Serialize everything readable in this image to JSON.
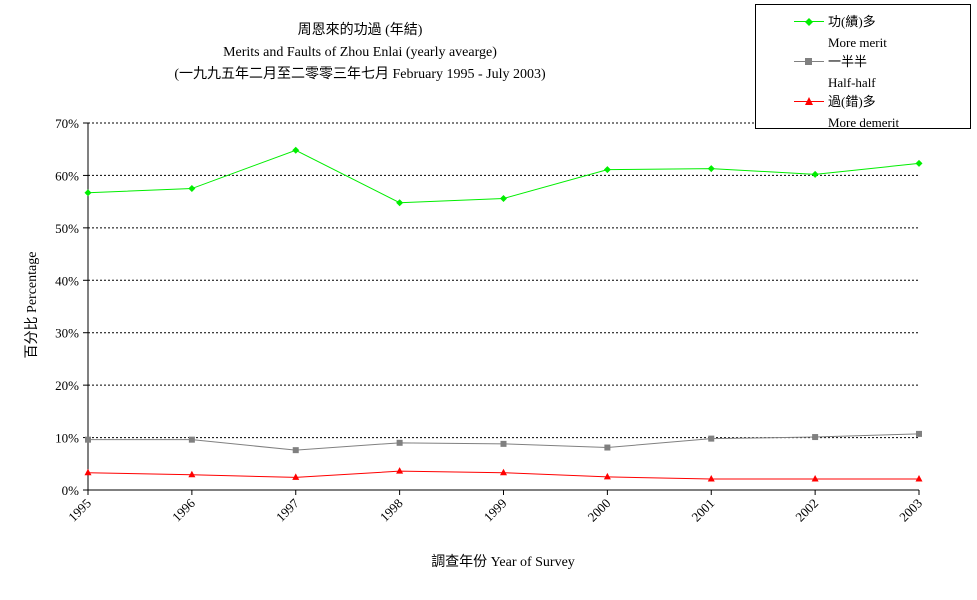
{
  "chart_data": {
    "type": "line",
    "title": "周恩來的功過 (年結)",
    "subtitle": "Merits and Faults of Zhou Enlai (yearly avearge)",
    "subtitle2": "(一九九五年二月至二零零三年七月 February 1995 - July 2003)",
    "xlabel": "調查年份 Year of Survey",
    "ylabel": "百分比 Percentage",
    "x": [
      "1995",
      "1996",
      "1997",
      "1998",
      "1999",
      "2000",
      "2001",
      "2002",
      "2003"
    ],
    "ylim": [
      0,
      70
    ],
    "yticks": [
      "0%",
      "10%",
      "20%",
      "30%",
      "40%",
      "50%",
      "60%",
      "70%"
    ],
    "grid": true,
    "legend_position": "top-right",
    "series": [
      {
        "name": "功(績)多",
        "name_en": "More merit",
        "color": "#00ee00",
        "marker": "diamond",
        "values": [
          56.7,
          57.5,
          64.8,
          54.8,
          55.6,
          61.1,
          61.3,
          60.2,
          62.3
        ]
      },
      {
        "name": "一半半",
        "name_en": "Half-half",
        "color": "#808080",
        "marker": "square",
        "values": [
          9.6,
          9.6,
          7.6,
          9.0,
          8.8,
          8.1,
          9.8,
          10.1,
          10.7
        ]
      },
      {
        "name": "過(錯)多",
        "name_en": "More demerit",
        "color": "#ff0000",
        "marker": "triangle",
        "values": [
          3.3,
          2.9,
          2.4,
          3.6,
          3.3,
          2.5,
          2.1,
          2.1,
          2.1
        ]
      }
    ]
  }
}
